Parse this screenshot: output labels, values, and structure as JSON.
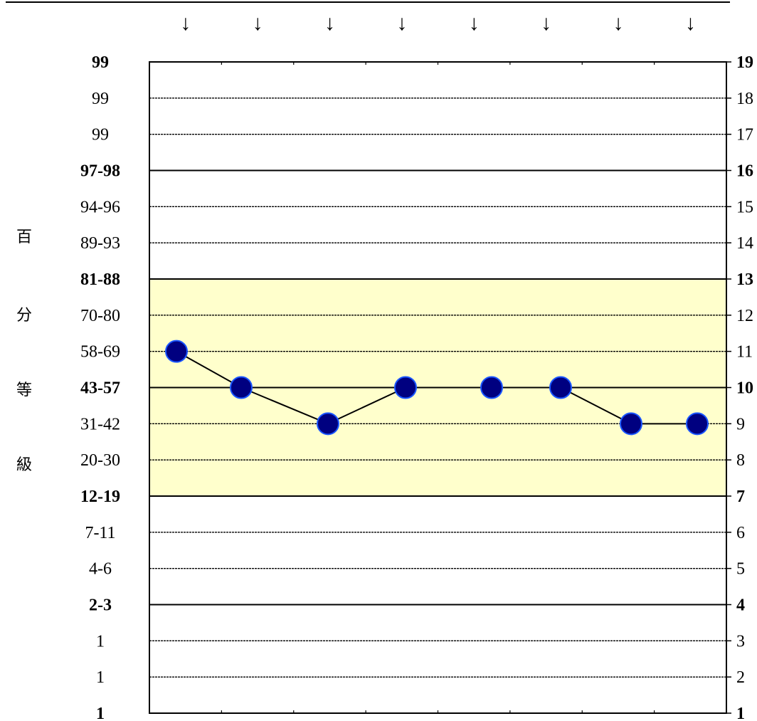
{
  "chart_data": {
    "type": "line",
    "left_axis_labels": [
      "1",
      "1",
      "1",
      "2-3",
      "4-6",
      "7-11",
      "12-19",
      "20-30",
      "31-42",
      "43-57",
      "58-69",
      "70-80",
      "81-88",
      "89-93",
      "94-96",
      "97-98",
      "99",
      "99",
      "99"
    ],
    "right_axis_labels": [
      "1",
      "2",
      "3",
      "4",
      "5",
      "6",
      "7",
      "8",
      "9",
      "10",
      "11",
      "12",
      "13",
      "14",
      "15",
      "16",
      "17",
      "18",
      "19"
    ],
    "bold_levels": [
      1,
      4,
      7,
      10,
      13,
      16,
      19
    ],
    "left_title": [
      "百",
      "分",
      "等",
      "級"
    ],
    "highlight_band": [
      7,
      13
    ],
    "highlight_color": "#ffffcc",
    "ylim": [
      1,
      19
    ],
    "x_count": 8,
    "top_marker": "↓",
    "series": [
      {
        "values": [
          11,
          10,
          9,
          10,
          10,
          10,
          9,
          9
        ],
        "color": "#000080"
      }
    ]
  }
}
